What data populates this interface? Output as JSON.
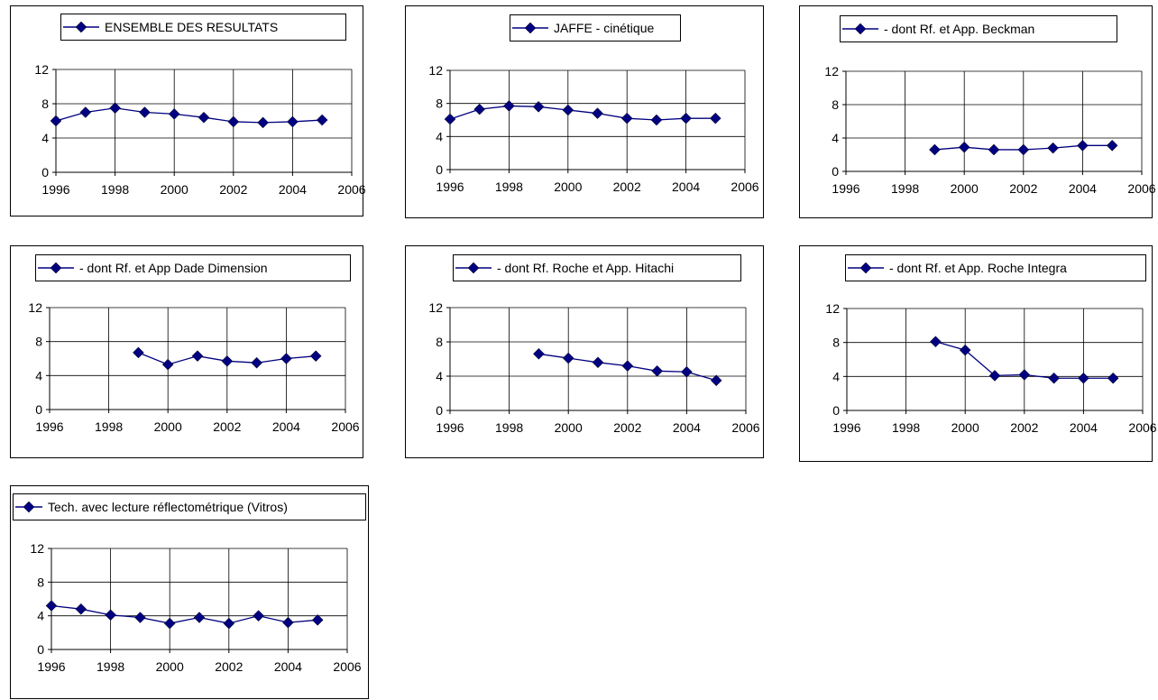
{
  "colors": {
    "series": "#000080",
    "axis": "#000000",
    "grid": "#000000",
    "frame": "#000000"
  },
  "chart_data": [
    {
      "type": "line",
      "legend": "ENSEMBLE DES RESULTATS",
      "x": [
        1996,
        1997,
        1998,
        1999,
        2000,
        2001,
        2002,
        2003,
        2004,
        2005
      ],
      "y": [
        6.0,
        7.0,
        7.5,
        7.0,
        6.8,
        6.4,
        5.9,
        5.8,
        5.9,
        6.1
      ],
      "xlim": [
        1996,
        2006
      ],
      "ylim": [
        0,
        12
      ],
      "xticks": [
        "1996",
        "1998",
        "2000",
        "2002",
        "2004",
        "2006"
      ],
      "yticks": [
        "0",
        "4",
        "8",
        "12"
      ],
      "grid": true,
      "legend_position": "top"
    },
    {
      "type": "line",
      "legend": "JAFFE - cinétique",
      "x": [
        1996,
        1997,
        1998,
        1999,
        2000,
        2001,
        2002,
        2003,
        2004,
        2005
      ],
      "y": [
        6.1,
        7.3,
        7.7,
        7.6,
        7.2,
        6.8,
        6.2,
        6.0,
        6.2,
        6.2
      ],
      "xlim": [
        1996,
        2006
      ],
      "ylim": [
        0,
        12
      ],
      "xticks": [
        "1996",
        "1998",
        "2000",
        "2002",
        "2004",
        "2006"
      ],
      "yticks": [
        "0",
        "4",
        "8",
        "12"
      ],
      "grid": true,
      "legend_position": "top"
    },
    {
      "type": "line",
      "legend": "- dont Rf. et App. Beckman",
      "x": [
        1999,
        2000,
        2001,
        2002,
        2003,
        2004,
        2005
      ],
      "y": [
        2.6,
        2.9,
        2.6,
        2.6,
        2.8,
        3.1,
        3.1
      ],
      "xlim": [
        1996,
        2006
      ],
      "ylim": [
        0,
        12
      ],
      "xticks": [
        "1996",
        "1998",
        "2000",
        "2002",
        "2004",
        "2006"
      ],
      "yticks": [
        "0",
        "4",
        "8",
        "12"
      ],
      "grid": true,
      "legend_position": "top"
    },
    {
      "type": "line",
      "legend": "- dont Rf. et App Dade Dimension",
      "x": [
        1999,
        2000,
        2001,
        2002,
        2003,
        2004,
        2005
      ],
      "y": [
        6.7,
        5.3,
        6.3,
        5.7,
        5.5,
        6.0,
        6.3
      ],
      "xlim": [
        1996,
        2006
      ],
      "ylim": [
        0,
        12
      ],
      "xticks": [
        "1996",
        "1998",
        "2000",
        "2002",
        "2004",
        "2006"
      ],
      "yticks": [
        "0",
        "4",
        "8",
        "12"
      ],
      "grid": true,
      "legend_position": "top"
    },
    {
      "type": "line",
      "legend": "- dont Rf. Roche et App. Hitachi",
      "x": [
        1999,
        2000,
        2001,
        2002,
        2003,
        2004,
        2005
      ],
      "y": [
        6.6,
        6.1,
        5.6,
        5.2,
        4.6,
        4.5,
        3.5
      ],
      "xlim": [
        1996,
        2006
      ],
      "ylim": [
        0,
        12
      ],
      "xticks": [
        "1996",
        "1998",
        "2000",
        "2002",
        "2004",
        "2006"
      ],
      "yticks": [
        "0",
        "4",
        "8",
        "12"
      ],
      "grid": true,
      "legend_position": "top"
    },
    {
      "type": "line",
      "legend": "- dont Rf. et App. Roche Integra",
      "x": [
        1999,
        2000,
        2001,
        2002,
        2003,
        2004,
        2005
      ],
      "y": [
        8.1,
        7.1,
        4.1,
        4.2,
        3.8,
        3.8,
        3.8
      ],
      "xlim": [
        1996,
        2006
      ],
      "ylim": [
        0,
        12
      ],
      "xticks": [
        "1996",
        "1998",
        "2000",
        "2002",
        "2004",
        "2006"
      ],
      "yticks": [
        "0",
        "4",
        "8",
        "12"
      ],
      "grid": true,
      "legend_position": "top"
    },
    {
      "type": "line",
      "legend": "Tech. avec lecture réflectométrique (Vitros)",
      "x": [
        1996,
        1997,
        1998,
        1999,
        2000,
        2001,
        2002,
        2003,
        2004,
        2005
      ],
      "y": [
        5.2,
        4.8,
        4.1,
        3.8,
        3.1,
        3.8,
        3.1,
        4.0,
        3.2,
        3.5
      ],
      "xlim": [
        1996,
        2006
      ],
      "ylim": [
        0,
        12
      ],
      "xticks": [
        "1996",
        "1998",
        "2000",
        "2002",
        "2004",
        "2006"
      ],
      "yticks": [
        "0",
        "4",
        "8",
        "12"
      ],
      "grid": true,
      "legend_position": "top"
    }
  ]
}
